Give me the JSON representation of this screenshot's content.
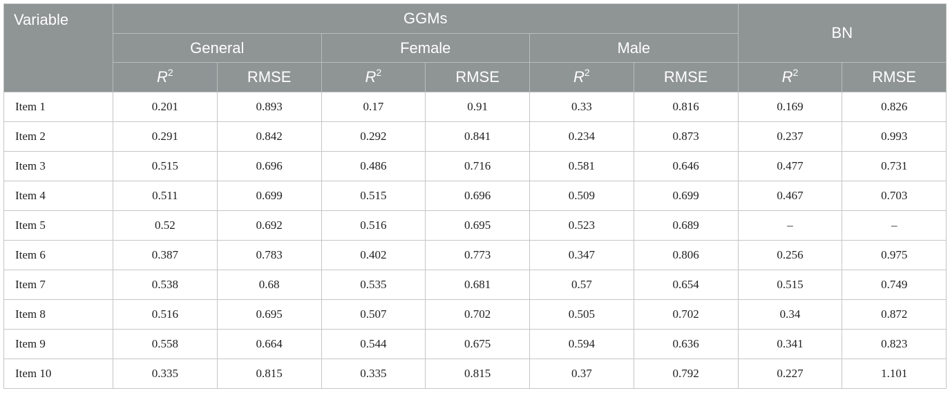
{
  "header": {
    "variable": "Variable",
    "ggms": "GGMs",
    "bn": "BN",
    "general": "General",
    "female": "Female",
    "male": "Male",
    "r2_base": "R",
    "r2_sup": "2",
    "rmse": "RMSE"
  },
  "rows": [
    {
      "item": "Item 1",
      "values": [
        "0.201",
        "0.893",
        "0.17",
        "0.91",
        "0.33",
        "0.816",
        "0.169",
        "0.826"
      ]
    },
    {
      "item": "Item 2",
      "values": [
        "0.291",
        "0.842",
        "0.292",
        "0.841",
        "0.234",
        "0.873",
        "0.237",
        "0.993"
      ]
    },
    {
      "item": "Item 3",
      "values": [
        "0.515",
        "0.696",
        "0.486",
        "0.716",
        "0.581",
        "0.646",
        "0.477",
        "0.731"
      ]
    },
    {
      "item": "Item 4",
      "values": [
        "0.511",
        "0.699",
        "0.515",
        "0.696",
        "0.509",
        "0.699",
        "0.467",
        "0.703"
      ]
    },
    {
      "item": "Item 5",
      "values": [
        "0.52",
        "0.692",
        "0.516",
        "0.695",
        "0.523",
        "0.689",
        "–",
        "–"
      ]
    },
    {
      "item": "Item 6",
      "values": [
        "0.387",
        "0.783",
        "0.402",
        "0.773",
        "0.347",
        "0.806",
        "0.256",
        "0.975"
      ]
    },
    {
      "item": "Item 7",
      "values": [
        "0.538",
        "0.68",
        "0.535",
        "0.681",
        "0.57",
        "0.654",
        "0.515",
        "0.749"
      ]
    },
    {
      "item": "Item 8",
      "values": [
        "0.516",
        "0.695",
        "0.507",
        "0.702",
        "0.505",
        "0.702",
        "0.34",
        "0.872"
      ]
    },
    {
      "item": "Item 9",
      "values": [
        "0.558",
        "0.664",
        "0.544",
        "0.675",
        "0.594",
        "0.636",
        "0.341",
        "0.823"
      ]
    },
    {
      "item": "Item 10",
      "values": [
        "0.335",
        "0.815",
        "0.335",
        "0.815",
        "0.37",
        "0.792",
        "0.227",
        "1.101"
      ]
    }
  ]
}
